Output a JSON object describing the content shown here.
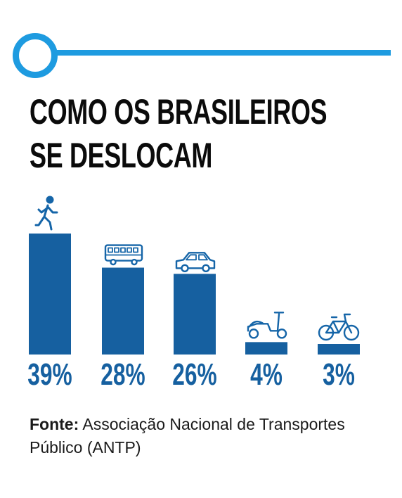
{
  "header": {
    "title_line1": "COMO OS BRASILEIROS",
    "title_line2": "SE DESLOCAM"
  },
  "colors": {
    "bar": "#1660a0",
    "accent": "#1e9be0",
    "icon": "#1565a8",
    "text": "#0b0b0b"
  },
  "chart_data": {
    "type": "bar",
    "categories": [
      "walking",
      "bus",
      "car",
      "motorcycle",
      "bicycle"
    ],
    "category_icons": [
      "walking-person-icon",
      "bus-icon",
      "car-icon",
      "scooter-icon",
      "bicycle-icon"
    ],
    "values": [
      39,
      28,
      26,
      4,
      3
    ],
    "value_labels": [
      "39%",
      "28%",
      "26%",
      "4%",
      "3%"
    ],
    "title": "COMO OS BRASILEIROS SE DESLOCAM",
    "ylim": [
      0,
      39
    ],
    "grid": false,
    "legend": "none"
  },
  "source": {
    "label": "Fonte:",
    "text": " Associação Nacional de Transportes Público (ANTP)"
  }
}
